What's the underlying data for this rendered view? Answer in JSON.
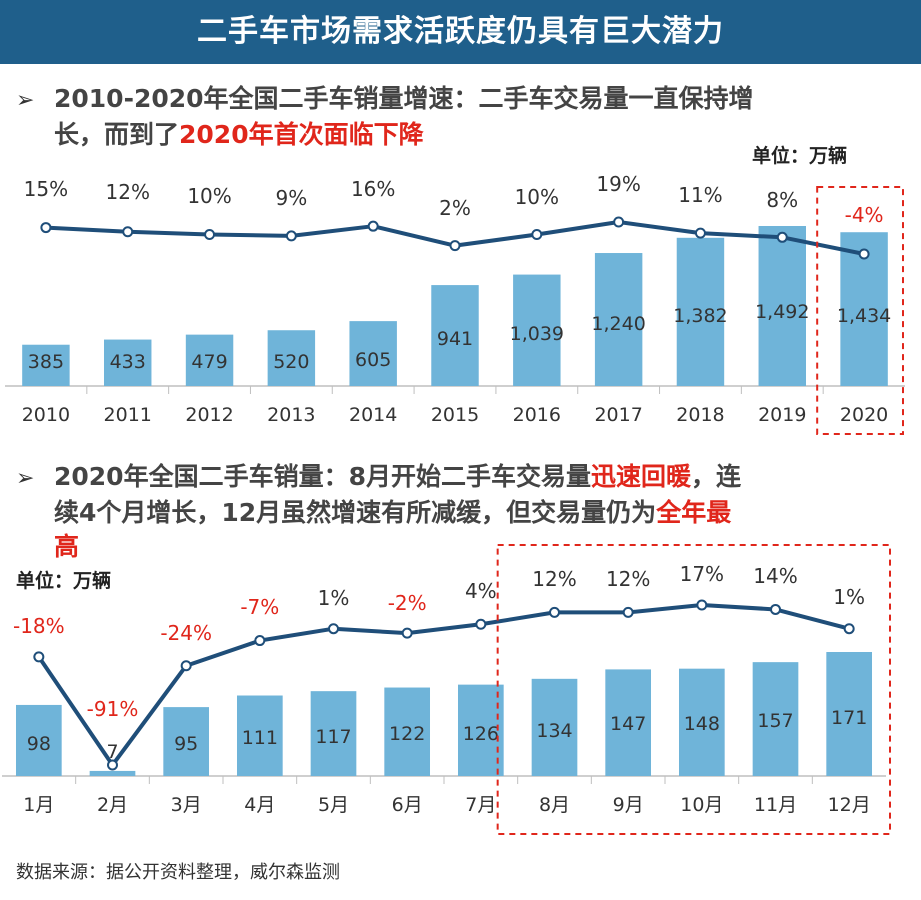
{
  "title": "二手车市场需求活跃度仍具有巨大潜力",
  "section1": {
    "bullet_line1": "2010-2020年全国二手车销量增速：二手车交易量一直保持增",
    "bullet_line2_prefix": "长，而到了",
    "bullet_line2_highlight": "2020年首次面临下降",
    "unit": "单位：万辆"
  },
  "section2": {
    "bullet_line1_prefix": "2020年全国二手车销量：8月开始二手车交易量",
    "bullet_line1_highlight": "迅速回暖",
    "bullet_line1_suffix": "，连",
    "bullet_line2_prefix": "续4个月增长，12月虽然增速有所减缓，但交易量仍为",
    "bullet_line2_highlight": "全年最",
    "bullet_line3_highlight": "高",
    "unit": "单位：万辆"
  },
  "source": "数据来源：据公开资料整理，威尔森监测",
  "colors": {
    "banner": "#1f5f8b",
    "bar": "#6fb4d9",
    "line": "#1f4e79",
    "negative": "#e0261b",
    "highlight_box": "#e0261b"
  },
  "chart_data": [
    {
      "type": "bar",
      "title": "2010-2020年全国二手车销量增速",
      "unit": "万辆",
      "categories": [
        "2010",
        "2011",
        "2012",
        "2013",
        "2014",
        "2015",
        "2016",
        "2017",
        "2018",
        "2019",
        "2020"
      ],
      "values": [
        385,
        433,
        479,
        520,
        605,
        941,
        1039,
        1240,
        1382,
        1492,
        1434
      ],
      "value_labels": [
        "385",
        "433",
        "479",
        "520",
        "605",
        "941",
        "1,039",
        "1,240",
        "1,382",
        "1,492",
        "1,434"
      ],
      "growth_labels": [
        "15%",
        "12%",
        "10%",
        "9%",
        "16%",
        "2%",
        "10%",
        "19%",
        "11%",
        "8%",
        "-4%"
      ],
      "growth": [
        15,
        12,
        10,
        9,
        16,
        2,
        10,
        19,
        11,
        8,
        -4
      ],
      "highlight_categories": [
        "2020"
      ],
      "ylim": [
        0,
        1600
      ]
    },
    {
      "type": "bar",
      "title": "2020年全国二手车销量",
      "unit": "万辆",
      "categories": [
        "1月",
        "2月",
        "3月",
        "4月",
        "5月",
        "6月",
        "7月",
        "8月",
        "9月",
        "10月",
        "11月",
        "12月"
      ],
      "values": [
        98,
        7,
        95,
        111,
        117,
        122,
        126,
        134,
        147,
        148,
        157,
        171
      ],
      "value_labels": [
        "98",
        "7",
        "95",
        "111",
        "117",
        "122",
        "126",
        "134",
        "147",
        "148",
        "157",
        "171"
      ],
      "growth_labels": [
        "-18%",
        "-91%",
        "-24%",
        "-7%",
        "1%",
        "-2%",
        "4%",
        "12%",
        "12%",
        "17%",
        "14%",
        "1%"
      ],
      "growth": [
        -18,
        -91,
        -24,
        -7,
        1,
        -2,
        4,
        12,
        12,
        17,
        14,
        1
      ],
      "highlight_categories": [
        "8月",
        "9月",
        "10月",
        "11月",
        "12月"
      ],
      "ylim": [
        0,
        180
      ]
    }
  ]
}
